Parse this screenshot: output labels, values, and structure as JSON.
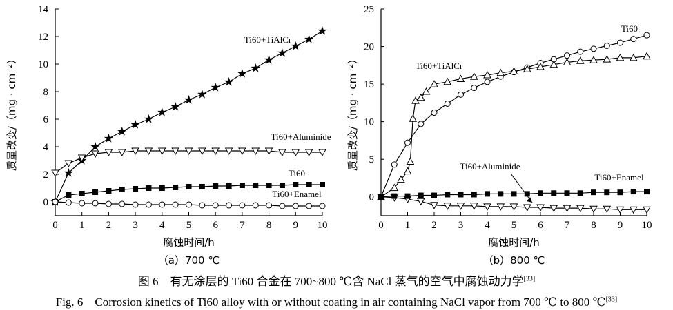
{
  "chart_data": [
    {
      "type": "line",
      "title": "（a）700 ℃",
      "x_label": "腐蚀时间/h",
      "y_label": "质量改变/（mg · cm⁻²）",
      "xlim": [
        0,
        10
      ],
      "ylim": [
        -1,
        14
      ],
      "xticks": [
        0,
        1,
        2,
        3,
        4,
        5,
        6,
        7,
        8,
        9,
        10
      ],
      "yticks": [
        0,
        2,
        4,
        6,
        8,
        10,
        12,
        14
      ],
      "x": [
        0,
        0.5,
        1,
        1.5,
        2,
        2.5,
        3,
        3.5,
        4,
        4.5,
        5,
        5.5,
        6,
        6.5,
        7,
        7.5,
        8,
        8.5,
        9,
        9.5,
        10
      ],
      "series": [
        {
          "name": "Ti60+TiAlCr",
          "color": "#000000",
          "marker": "star",
          "values": [
            0,
            2.1,
            3.0,
            4.0,
            4.6,
            5.1,
            5.6,
            6.0,
            6.5,
            6.9,
            7.4,
            7.8,
            8.3,
            8.7,
            9.3,
            9.7,
            10.3,
            10.8,
            11.3,
            11.8,
            12.4
          ]
        },
        {
          "name": "Ti60+Aluminide",
          "color": "#000000",
          "marker": "triangle-down",
          "values": [
            2.1,
            2.8,
            3.2,
            3.5,
            3.6,
            3.6,
            3.7,
            3.7,
            3.7,
            3.7,
            3.7,
            3.7,
            3.7,
            3.7,
            3.7,
            3.7,
            3.7,
            3.6,
            3.6,
            3.6,
            3.6
          ]
        },
        {
          "name": "Ti60",
          "color": "#000000",
          "marker": "square",
          "values": [
            0,
            0.5,
            0.6,
            0.7,
            0.8,
            0.9,
            0.95,
            1.0,
            1.0,
            1.05,
            1.1,
            1.1,
            1.15,
            1.15,
            1.2,
            1.2,
            1.2,
            1.2,
            1.25,
            1.25,
            1.25
          ]
        },
        {
          "name": "Ti60+Enamel",
          "color": "#000000",
          "marker": "circle",
          "values": [
            0,
            -0.05,
            -0.1,
            -0.1,
            -0.15,
            -0.15,
            -0.2,
            -0.2,
            -0.2,
            -0.2,
            -0.2,
            -0.25,
            -0.25,
            -0.25,
            -0.25,
            -0.25,
            -0.25,
            -0.3,
            -0.3,
            -0.3,
            -0.3
          ]
        }
      ]
    },
    {
      "type": "line",
      "title": "（b）800 ℃",
      "x_label": "腐蚀时间/h",
      "y_label": "质量改变/（mg · cm⁻²）",
      "xlim": [
        0,
        10
      ],
      "ylim": [
        -2.5,
        25
      ],
      "xticks": [
        0,
        1,
        2,
        3,
        4,
        5,
        6,
        7,
        8,
        9,
        10
      ],
      "yticks": [
        0,
        5,
        10,
        15,
        20,
        25
      ],
      "x": [
        0,
        0.5,
        1,
        1.5,
        2,
        2.5,
        3,
        3.5,
        4,
        4.5,
        5,
        5.5,
        6,
        6.5,
        7,
        7.5,
        8,
        8.5,
        9,
        9.5,
        10
      ],
      "series": [
        {
          "name": "Ti60",
          "color": "#000000",
          "marker": "circle",
          "values": [
            0,
            4.3,
            7.2,
            9.7,
            11.2,
            12.4,
            13.6,
            14.5,
            15.3,
            16.0,
            16.6,
            17.2,
            17.8,
            18.3,
            18.8,
            19.3,
            19.7,
            20.1,
            20.5,
            21.0,
            21.5
          ]
        },
        {
          "name": "Ti60+TiAlCr",
          "color": "#000000",
          "marker": "triangle-up",
          "x": [
            0,
            0.5,
            0.75,
            1,
            1.1,
            1.2,
            1.3,
            1.5,
            1.7,
            2,
            2.5,
            3,
            3.5,
            4,
            4.5,
            5,
            5.5,
            6,
            6.5,
            7,
            7.5,
            8,
            8.5,
            9,
            9.5,
            10
          ],
          "values": [
            0,
            1.2,
            2.3,
            3.4,
            4.7,
            10.4,
            12.8,
            13.2,
            14.0,
            15.0,
            15.3,
            15.7,
            16.0,
            16.2,
            16.5,
            16.7,
            17.0,
            17.3,
            17.6,
            17.9,
            18.1,
            18.2,
            18.3,
            18.5,
            18.5,
            18.7
          ]
        },
        {
          "name": "Ti60+Aluminide",
          "color": "#000000",
          "marker": "triangle-down",
          "values": [
            0,
            -0.1,
            -0.3,
            -0.6,
            -1.1,
            -1.2,
            -1.2,
            -1.2,
            -1.3,
            -1.3,
            -1.3,
            -1.4,
            -1.4,
            -1.5,
            -1.5,
            -1.5,
            -1.6,
            -1.6,
            -1.7,
            -1.7,
            -1.7
          ]
        },
        {
          "name": "Ti60+Enamel",
          "color": "#000000",
          "marker": "square",
          "values": [
            0,
            0.1,
            0.1,
            0.2,
            0.2,
            0.3,
            0.3,
            0.3,
            0.4,
            0.4,
            0.4,
            0.4,
            0.5,
            0.5,
            0.5,
            0.5,
            0.6,
            0.6,
            0.6,
            0.7,
            0.7
          ]
        }
      ]
    }
  ],
  "caption": {
    "cn": "图 6　有无涂层的 Ti60 合金在 700~800 ℃含 NaCl 蒸气的空气中腐蚀动力学",
    "cn_ref": "[33]",
    "en": "Fig. 6　Corrosion kinetics of Ti60 alloy with or without coating in air containing NaCl vapor from 700 ℃ to 800 ℃",
    "en_ref": "[33]"
  }
}
